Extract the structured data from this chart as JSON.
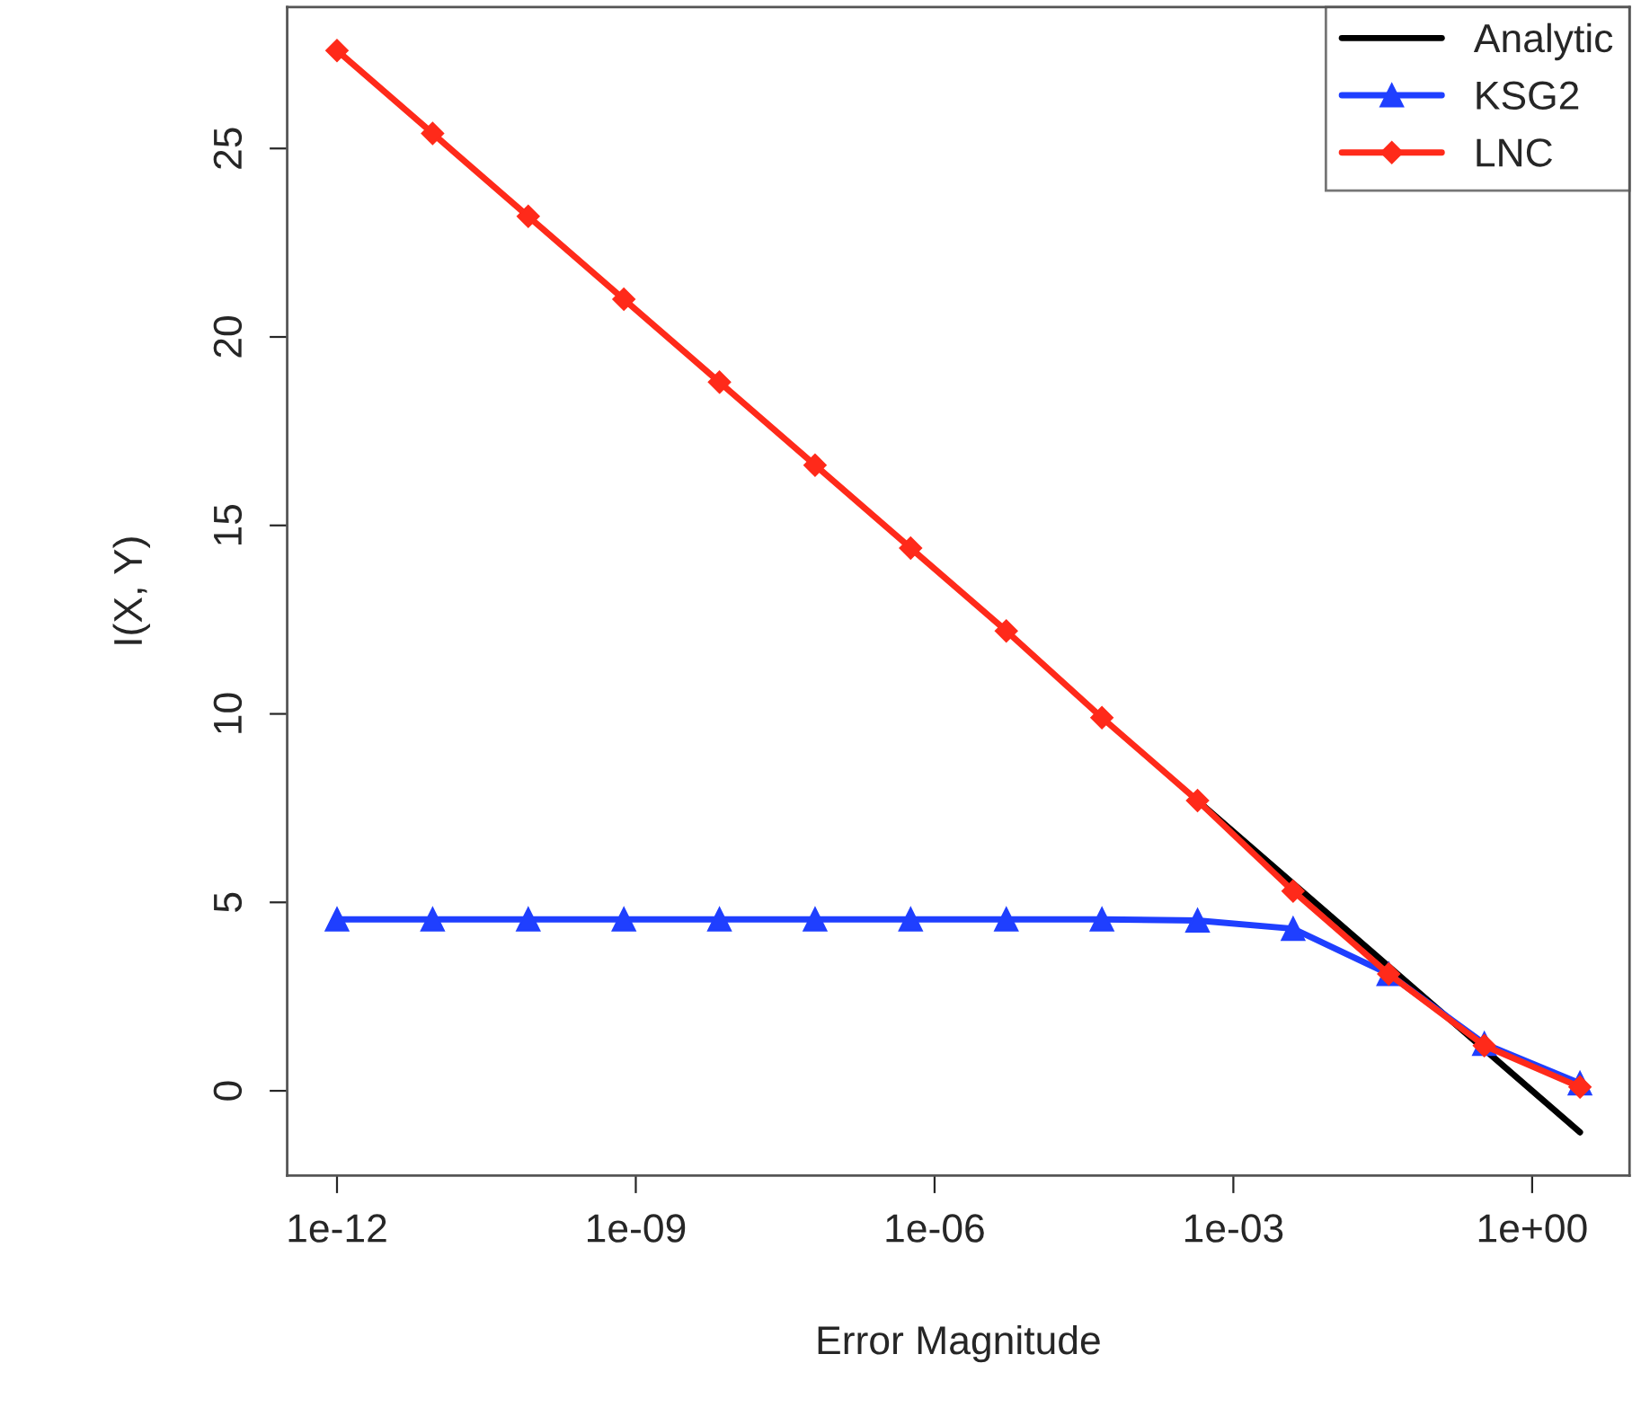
{
  "chart_data": {
    "type": "line",
    "xlabel": "Error Magnitude",
    "ylabel": "I(X, Y)",
    "x": [
      1e-12,
      9.12e-12,
      8.32e-11,
      7.59e-10,
      6.92e-09,
      6.31e-08,
      5.75e-07,
      5.25e-06,
      4.79e-05,
      0.000437,
      0.00398,
      0.0363,
      0.331,
      3.02
    ],
    "series": [
      {
        "name": "Analytic",
        "color": "#000000",
        "marker": "none",
        "values": [
          null,
          null,
          null,
          null,
          null,
          null,
          null,
          null,
          null,
          7.7,
          5.5,
          3.3,
          1.1,
          -1.1
        ]
      },
      {
        "name": "KSG2",
        "color": "#1f3fff",
        "marker": "triangle",
        "values": [
          4.55,
          4.55,
          4.55,
          4.55,
          4.55,
          4.55,
          4.55,
          4.55,
          4.55,
          4.52,
          4.3,
          3.1,
          1.25,
          0.2
        ]
      },
      {
        "name": "LNC",
        "color": "#ff2a1a",
        "marker": "diamond",
        "values": [
          27.6,
          25.4,
          23.2,
          21.0,
          18.8,
          16.6,
          14.4,
          12.2,
          9.9,
          7.7,
          5.3,
          3.1,
          1.2,
          0.1
        ]
      }
    ],
    "log": "x",
    "xlim": [
      3.16e-13,
      9.5
    ],
    "xticks": [
      {
        "value": 1e-12,
        "label": "1e-12"
      },
      {
        "value": 1e-09,
        "label": "1e-09"
      },
      {
        "value": 1e-06,
        "label": "1e-06"
      },
      {
        "value": 0.001,
        "label": "1e-03"
      },
      {
        "value": 1,
        "label": "1e+00"
      }
    ],
    "ylim": [
      -2.25,
      28.75
    ],
    "yticks": [
      0,
      5,
      10,
      15,
      20,
      25
    ],
    "grid": false,
    "legend": "top right",
    "line_style": "solid"
  }
}
